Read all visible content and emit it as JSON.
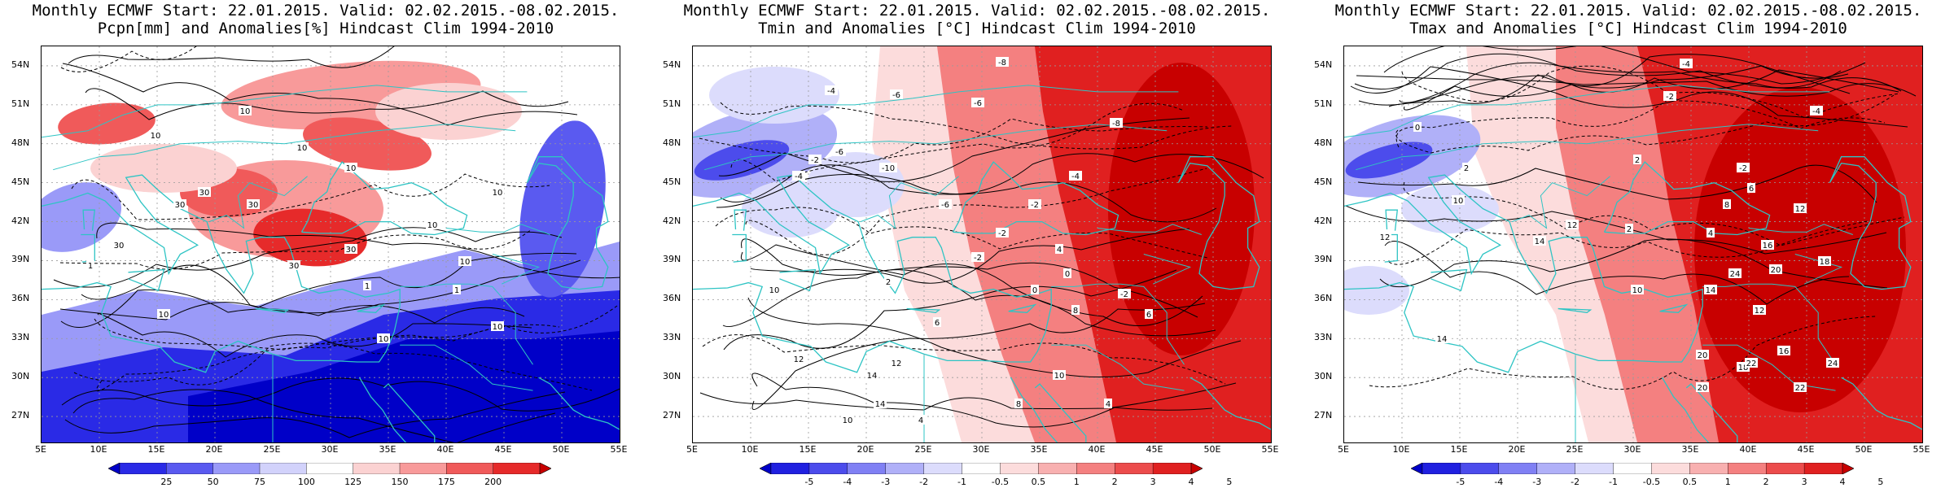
{
  "panels": [
    {
      "id": "pcpn",
      "title_line1": "Monthly ECMWF Start: 22.01.2015. Valid: 02.02.2015.-08.02.2015.",
      "title_line2": "Pcpn[mm] and Anomalies[%] Hindcast Clim 1994-2010",
      "colorbar": {
        "colors": [
          "#0000c8",
          "#2a2ae6",
          "#5a5af0",
          "#9a9af8",
          "#d2d2fb",
          "#ffffff",
          "#fbd2d2",
          "#f89a9a",
          "#f05a5a",
          "#e62a2a",
          "#c80000"
        ],
        "labels": [
          "25",
          "50",
          "75",
          "100",
          "125",
          "150",
          "175",
          "200"
        ]
      }
    },
    {
      "id": "tmin",
      "title_line1": "Monthly ECMWF Start: 22.01.2015. Valid: 02.02.2015.-08.02.2015.",
      "title_line2": "Tmin and Anomalies [°C] Hindcast Clim 1994-2010",
      "colorbar": {
        "colors": [
          "#0000c8",
          "#2020e0",
          "#4c4cec",
          "#8080f4",
          "#b0b0f8",
          "#dcdcfc",
          "#ffffff",
          "#fcdcdc",
          "#f8b0b0",
          "#f48080",
          "#ec4c4c",
          "#e02020",
          "#c80000"
        ],
        "labels": [
          "-5",
          "-4",
          "-3",
          "-2",
          "-1",
          "-0.5",
          "0.5",
          "1",
          "2",
          "3",
          "4",
          "5"
        ]
      }
    },
    {
      "id": "tmax",
      "title_line1": "Monthly ECMWF Start: 22.01.2015. Valid: 02.02.2015.-08.02.2015.",
      "title_line2": "Tmax and Anomalies [°C] Hindcast Clim 1994-2010",
      "colorbar": {
        "colors": [
          "#0000c8",
          "#2020e0",
          "#4c4cec",
          "#8080f4",
          "#b0b0f8",
          "#dcdcfc",
          "#ffffff",
          "#fcdcdc",
          "#f8b0b0",
          "#f48080",
          "#ec4c4c",
          "#e02020",
          "#c80000"
        ],
        "labels": [
          "-5",
          "-4",
          "-3",
          "-2",
          "-1",
          "-0.5",
          "0.5",
          "1",
          "2",
          "3",
          "4",
          "5"
        ]
      }
    }
  ],
  "latitude_labels": [
    "54N",
    "51N",
    "48N",
    "45N",
    "42N",
    "39N",
    "36N",
    "33N",
    "30N",
    "27N"
  ],
  "longitude_labels": [
    "5E",
    "10E",
    "15E",
    "20E",
    "25E",
    "30E",
    "35E",
    "40E",
    "45E",
    "50E",
    "55E"
  ],
  "contour_labels": {
    "pcpn": [
      "10",
      "10",
      "10",
      "10",
      "10",
      "10",
      "10",
      "30",
      "30",
      "30",
      "30",
      "30",
      "30",
      "1",
      "1",
      "1",
      "10",
      "10",
      "10"
    ],
    "tmin": [
      "-8",
      "-4",
      "-6",
      "-6",
      "-8",
      "-6",
      "-4",
      "-10",
      "-2",
      "-6",
      "-2",
      "-2",
      "0",
      "-2",
      "4",
      "0",
      "2",
      "6",
      "8",
      "10",
      "12",
      "14",
      "12",
      "14",
      "10",
      "4",
      "4",
      "-4",
      "-2",
      "6",
      "8",
      "10"
    ],
    "tmax": [
      "-4",
      "-2",
      "-4",
      "0",
      "2",
      "-2",
      "2",
      "6",
      "8",
      "4",
      "2",
      "12",
      "14",
      "16",
      "18",
      "20",
      "24",
      "10",
      "12",
      "14",
      "16",
      "18",
      "20",
      "22",
      "24",
      "10",
      "12",
      "16",
      "20",
      "22",
      "12",
      "14"
    ]
  },
  "colors": {
    "coastline": "#2ec4c4",
    "contour": "#000000",
    "grid": "#9a9a9a"
  }
}
